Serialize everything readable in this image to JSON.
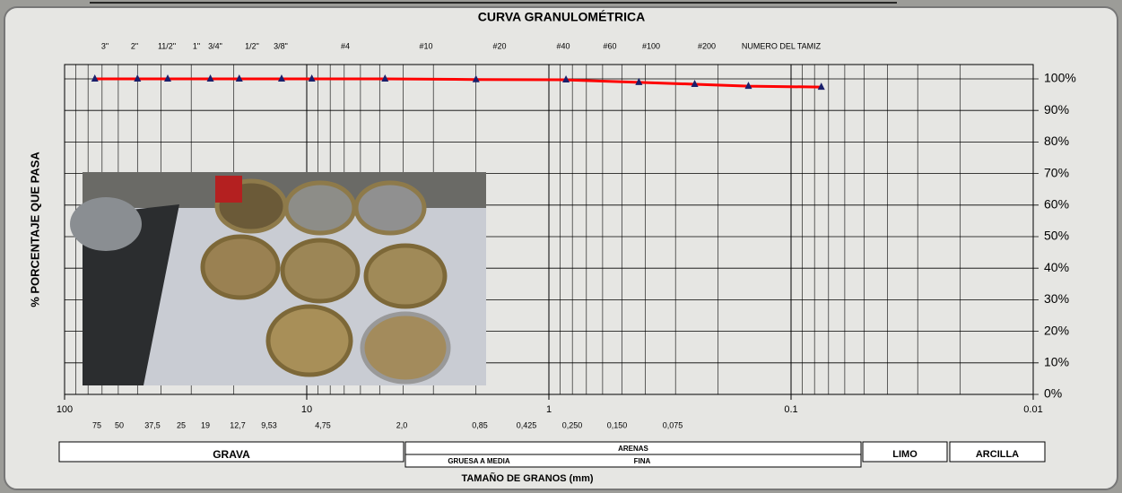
{
  "chart_data": {
    "type": "line",
    "title": "CURVA GRANULOMÉTRICA",
    "y_label": "% PORCENTAJE QUE PASA",
    "x_label": "TAMAÑO DE GRANOS (mm)",
    "sieve_labels": [
      "3\"",
      "2\"",
      "11/2\"",
      "1\"",
      "3/4\"",
      "1/2\"",
      "3/8\"",
      "#4",
      "#10",
      "#20",
      "#40",
      "#60",
      "#100",
      "#200",
      "NUMERO DEL TAMIZ"
    ],
    "size_labels": [
      "75",
      "50",
      "37,5",
      "25",
      "19",
      "12,7",
      "9,53",
      "4,75",
      "2,0",
      "0,85",
      "0,425",
      "0,250",
      "0,150",
      "0,075"
    ],
    "x": [
      75,
      50,
      37.5,
      25,
      19,
      12.7,
      9.53,
      4.75,
      2.0,
      0.85,
      0.425,
      0.25,
      0.15,
      0.075
    ],
    "series": [
      {
        "color": "#ff0000",
        "marker_color": "#1a1f6b",
        "values": [
          100,
          100,
          100,
          100,
          100,
          100,
          100,
          100,
          99.8,
          99.7,
          98.9,
          98.3,
          97.7,
          97.4
        ]
      }
    ],
    "xlim": [
      100,
      0.01
    ],
    "xticks": [
      100,
      10,
      1,
      0.1,
      0.01
    ],
    "log_x": true,
    "ylim": [
      0,
      100
    ],
    "yticks": [
      {
        "value": 0,
        "label": "0%"
      },
      {
        "value": 10,
        "label": "10%"
      },
      {
        "value": 20,
        "label": "20%"
      },
      {
        "value": 30,
        "label": "30%"
      },
      {
        "value": 40,
        "label": "40%"
      },
      {
        "value": 50,
        "label": "50%"
      },
      {
        "value": 60,
        "label": "60%"
      },
      {
        "value": 70,
        "label": "70%"
      },
      {
        "value": 80,
        "label": "80%"
      },
      {
        "value": 90,
        "label": "90%"
      },
      {
        "value": 100,
        "label": "100%"
      }
    ],
    "grid": true,
    "soil_classes": {
      "gravel": "GRAVA",
      "sand": "ARENAS",
      "sand_coarse": "GRUESA A MEDIA",
      "sand_fine": "FINA",
      "silt": "LIMO",
      "clay": "ARCILLA"
    }
  }
}
